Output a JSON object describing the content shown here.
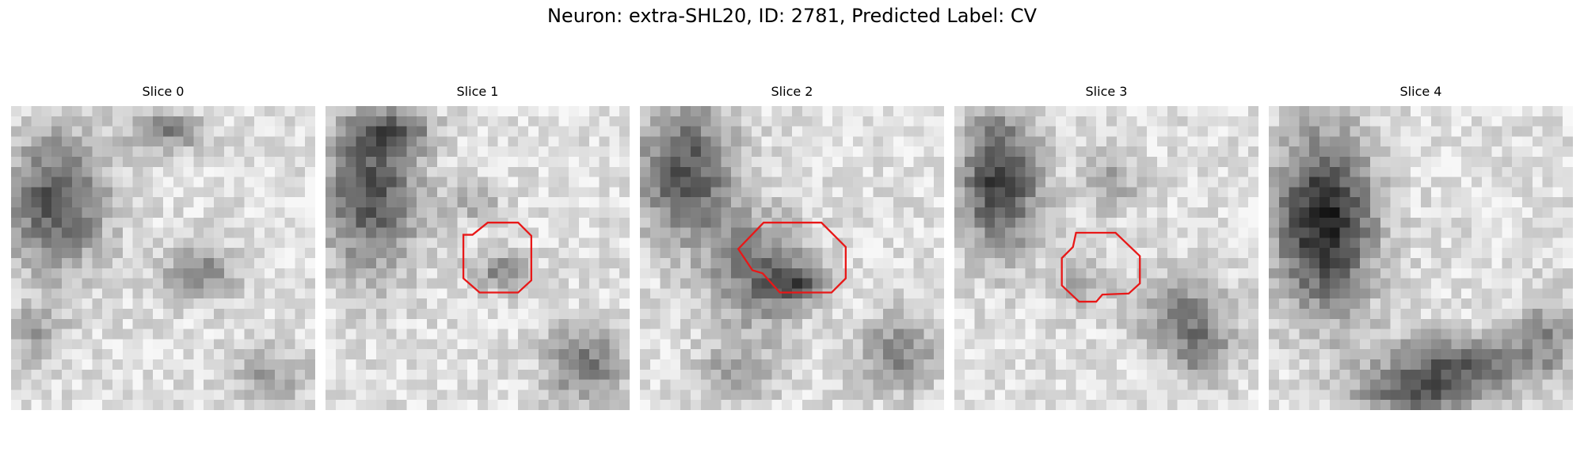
{
  "figure": {
    "title": "Neuron: extra-SHL20, ID: 2781, Predicted Label: CV"
  },
  "colors": {
    "contour": "#e81818",
    "background": "#ffffff"
  },
  "panels": [
    {
      "title": "Slice 0",
      "has_contour": false
    },
    {
      "title": "Slice 1",
      "has_contour": true
    },
    {
      "title": "Slice 2",
      "has_contour": true
    },
    {
      "title": "Slice 3",
      "has_contour": true
    },
    {
      "title": "Slice 4",
      "has_contour": false
    }
  ]
}
